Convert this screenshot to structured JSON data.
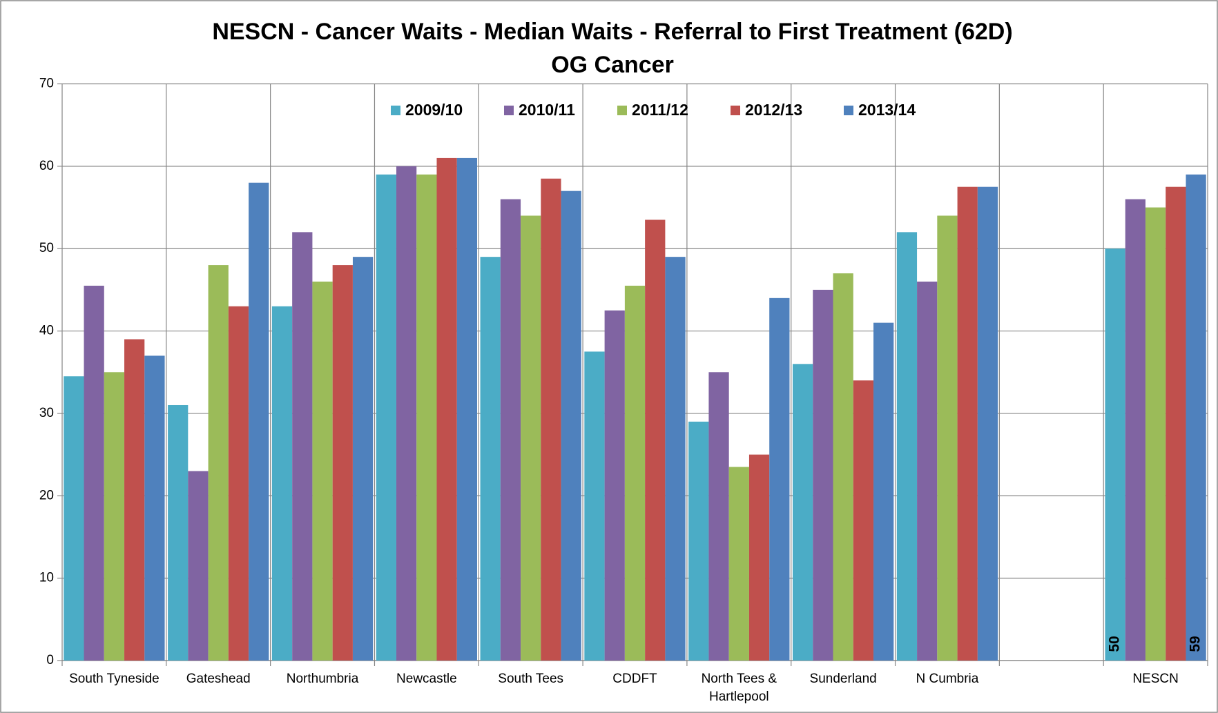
{
  "chart_data": {
    "type": "bar",
    "title": "NESCN - Cancer Waits - Median Waits - Referral  to First Treatment (62D)",
    "subtitle": "OG Cancer",
    "categories": [
      "South Tyneside",
      "Gateshead",
      "Northumbria",
      "Newcastle",
      "South Tees",
      "CDDFT",
      "North Tees & Hartlepool",
      "Sunderland",
      "N Cumbria",
      null,
      "NESCN"
    ],
    "series": [
      {
        "name": "2009/10",
        "color": "#4bacc6",
        "values": [
          34.5,
          31,
          43,
          59,
          49,
          37.5,
          29,
          36,
          52,
          null,
          50
        ],
        "value_labels": [
          null,
          null,
          null,
          null,
          null,
          null,
          null,
          null,
          null,
          null,
          "50"
        ]
      },
      {
        "name": "2010/11",
        "color": "#8064a2",
        "values": [
          45.5,
          23,
          52,
          60,
          56,
          42.5,
          35,
          45,
          46,
          null,
          56
        ]
      },
      {
        "name": "2011/12",
        "color": "#9bbb59",
        "values": [
          35,
          48,
          46,
          59,
          54,
          45.5,
          23.5,
          47,
          54,
          null,
          55
        ]
      },
      {
        "name": "2012/13",
        "color": "#c0504d",
        "values": [
          39,
          43,
          48,
          61,
          58.5,
          53.5,
          25,
          34,
          57.5,
          null,
          57.5
        ]
      },
      {
        "name": "2013/14",
        "color": "#4f81bd",
        "values": [
          37,
          58,
          49,
          61,
          57,
          49,
          44,
          41,
          57.5,
          null,
          59
        ],
        "value_labels": [
          null,
          null,
          null,
          null,
          null,
          null,
          null,
          null,
          null,
          null,
          "59"
        ]
      }
    ],
    "ylim": [
      0,
      70
    ],
    "yticks": [
      0,
      10,
      20,
      30,
      40,
      50,
      60,
      70
    ],
    "grid": true,
    "legend": "top"
  }
}
